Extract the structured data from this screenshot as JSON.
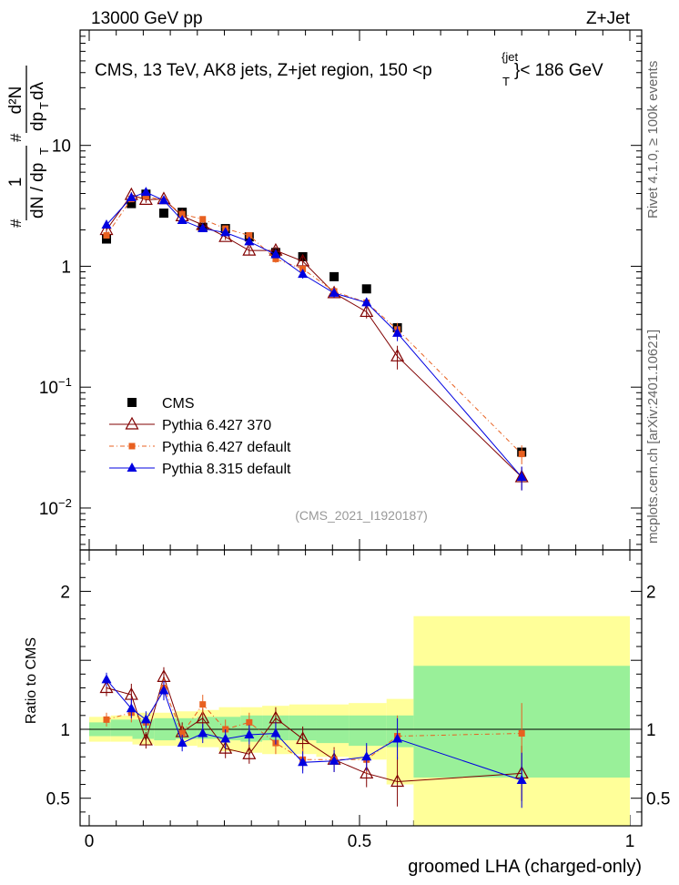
{
  "header": {
    "left": "13000 GeV pp",
    "right": "Z+Jet"
  },
  "side": {
    "rivet": "Rivet 4.1.0, ≥ 100k events",
    "mcplots": "mcplots.cern.ch [arXiv:2401.10621]"
  },
  "chart_data": {
    "type": "scatter",
    "title": "CMS, 13 TeV, AK8 jets, Z+jet region, 150 <p",
    "title_sup": "{jet",
    "title_sub": "T",
    "title_end": "}< 186 GeV",
    "analysis_tag": "(CMS_2021_I1920187)",
    "xlabel": "groomed LHA (charged-only)",
    "ylabel_ratio": "Ratio to CMS",
    "xlim": [
      0,
      1
    ],
    "xticks": [
      "0",
      "0.5",
      "1"
    ],
    "main_ylim": [
      0.0045,
      90
    ],
    "main_yscale": "log",
    "main_yticks": [
      {
        "v": 0.01,
        "base": "10",
        "exp": "−2"
      },
      {
        "v": 0.1,
        "base": "10",
        "exp": "−1"
      },
      {
        "v": 1,
        "base": "1",
        "exp": ""
      },
      {
        "v": 10,
        "base": "10",
        "exp": ""
      }
    ],
    "ratio_ylim": [
      0.3,
      2.3
    ],
    "ratio_yticks": [
      "0.5",
      "1",
      "2"
    ],
    "ylabel_main": {
      "frac1_num": "1",
      "frac1_den": "dN / dp",
      "frac1_den_sub": "T",
      "frac2_num": "d²N",
      "frac2_den": "dp",
      "frac2_den_sub": "T",
      "frac2_den_end": " dλ",
      "hash": "#"
    },
    "legend": [
      "CMS",
      "Pythia 6.427 370",
      "Pythia 6.427 default",
      "Pythia 8.315 default"
    ],
    "bin_edges": [
      0,
      0.04,
      0.08,
      0.12,
      0.16,
      0.2,
      0.24,
      0.28,
      0.32,
      0.37,
      0.42,
      0.48,
      0.55,
      0.6,
      1.0
    ],
    "x": [
      0.032,
      0.078,
      0.105,
      0.138,
      0.172,
      0.21,
      0.252,
      0.296,
      0.345,
      0.395,
      0.453,
      0.513,
      0.57,
      0.8
    ],
    "series": [
      {
        "name": "CMS",
        "color": "#000000",
        "marker": "square",
        "values": [
          1.68,
          3.3,
          3.95,
          2.75,
          2.8,
          2.1,
          2.05,
          1.75,
          1.3,
          1.2,
          0.82,
          0.65,
          0.31,
          0.029
        ],
        "errors": [
          0.1,
          0.15,
          0.15,
          0.1,
          0.1,
          0.08,
          0.08,
          0.07,
          0.06,
          0.06,
          0.04,
          0.04,
          0.02,
          0.002
        ]
      },
      {
        "name": "Pythia 6.427 370",
        "color": "#800000",
        "marker": "open-triangle",
        "values": [
          2.0,
          3.9,
          3.55,
          3.6,
          2.6,
          2.2,
          1.75,
          1.35,
          1.35,
          1.1,
          0.6,
          0.42,
          0.18,
          0.018
        ],
        "errors": [
          0.1,
          0.2,
          0.2,
          0.2,
          0.15,
          0.1,
          0.1,
          0.1,
          0.1,
          0.1,
          0.05,
          0.05,
          0.04,
          0.004
        ]
      },
      {
        "name": "Pythia 6.427 default",
        "color": "#e86020",
        "marker": "small-square",
        "values": [
          1.8,
          3.6,
          3.8,
          3.5,
          2.7,
          2.45,
          2.05,
          1.8,
          1.15,
          0.95,
          0.62,
          0.5,
          0.3,
          0.028
        ],
        "errors": [
          0.08,
          0.15,
          0.15,
          0.15,
          0.12,
          0.1,
          0.1,
          0.08,
          0.08,
          0.07,
          0.05,
          0.05,
          0.04,
          0.005
        ]
      },
      {
        "name": "Pythia 8.315 default",
        "color": "#0000e0",
        "marker": "filled-triangle",
        "values": [
          2.2,
          3.7,
          4.1,
          3.5,
          2.4,
          2.05,
          1.9,
          1.6,
          1.25,
          0.86,
          0.6,
          0.5,
          0.28,
          0.018
        ],
        "errors": [
          0.1,
          0.2,
          0.2,
          0.2,
          0.12,
          0.1,
          0.1,
          0.08,
          0.08,
          0.07,
          0.05,
          0.05,
          0.04,
          0.004
        ]
      }
    ],
    "ratio": {
      "band_inner": [
        [
          0.95,
          1.05
        ],
        [
          0.95,
          1.07
        ],
        [
          0.93,
          1.07
        ],
        [
          0.92,
          1.08
        ],
        [
          0.93,
          1.08
        ],
        [
          0.93,
          1.09
        ],
        [
          0.92,
          1.09
        ],
        [
          0.91,
          1.1
        ],
        [
          0.92,
          1.1
        ],
        [
          0.92,
          1.1
        ],
        [
          0.9,
          1.1
        ],
        [
          0.88,
          1.1
        ],
        [
          0.87,
          1.1
        ],
        [
          0.65,
          1.46
        ]
      ],
      "band_outer": [
        [
          0.91,
          1.09
        ],
        [
          0.91,
          1.1
        ],
        [
          0.89,
          1.12
        ],
        [
          0.88,
          1.12
        ],
        [
          0.88,
          1.13
        ],
        [
          0.87,
          1.14
        ],
        [
          0.84,
          1.16
        ],
        [
          0.83,
          1.16
        ],
        [
          0.82,
          1.17
        ],
        [
          0.82,
          1.18
        ],
        [
          0.8,
          1.18
        ],
        [
          0.78,
          1.19
        ],
        [
          0.6,
          1.22
        ],
        [
          0.3,
          1.82
        ]
      ],
      "series": [
        {
          "name": "Pythia 6.427 370",
          "values": [
            1.3,
            1.25,
            0.92,
            1.38,
            0.98,
            1.08,
            0.86,
            0.82,
            1.08,
            0.93,
            0.78,
            0.68,
            0.62,
            0.68
          ],
          "errors": [
            0.06,
            0.08,
            0.06,
            0.07,
            0.07,
            0.07,
            0.07,
            0.07,
            0.08,
            0.09,
            0.09,
            0.1,
            0.18,
            0.2
          ]
        },
        {
          "name": "Pythia 6.427 default",
          "values": [
            1.07,
            1.12,
            1.05,
            1.3,
            0.97,
            1.18,
            1.0,
            1.05,
            0.9,
            0.78,
            0.78,
            0.78,
            0.95,
            0.97
          ],
          "errors": [
            0.05,
            0.07,
            0.06,
            0.07,
            0.06,
            0.07,
            0.07,
            0.07,
            0.08,
            0.08,
            0.08,
            0.1,
            0.15,
            0.22
          ]
        },
        {
          "name": "Pythia 8.315 default",
          "values": [
            1.36,
            1.15,
            1.07,
            1.28,
            0.9,
            0.97,
            0.93,
            0.96,
            0.97,
            0.76,
            0.77,
            0.8,
            0.93,
            0.63
          ],
          "errors": [
            0.05,
            0.07,
            0.06,
            0.07,
            0.06,
            0.07,
            0.07,
            0.07,
            0.08,
            0.08,
            0.08,
            0.1,
            0.15,
            0.2
          ]
        }
      ]
    }
  }
}
